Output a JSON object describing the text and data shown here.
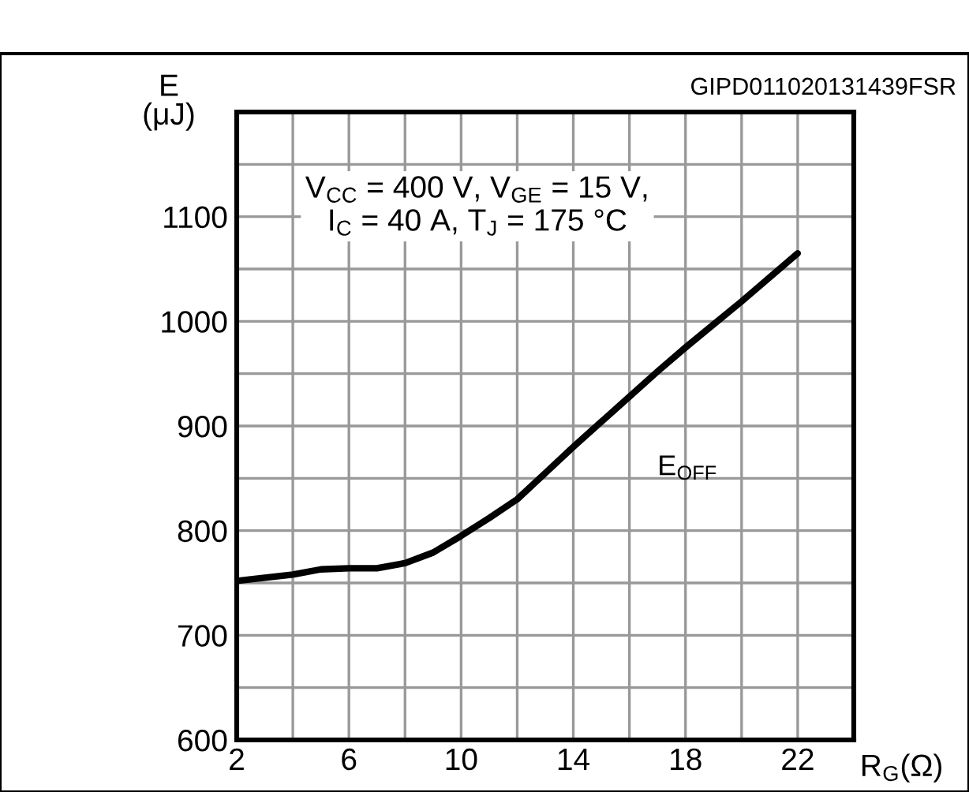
{
  "chart_data": {
    "type": "line",
    "xlabel": "R$_{G}$(Ω)",
    "ylabel": "E\n(μJ)",
    "annotations": [
      "GIPD011020131439FSR",
      "V$_{CC}$ = 400 V, V$_{GE}$ = 15 V,\nI$_{C}$ = 40 A, T$_{J}$ = 175 °C"
    ],
    "series": [
      {
        "name": "E$_{OFF}$",
        "color": "#000000",
        "x": [
          2,
          3,
          4,
          5,
          6,
          7,
          8,
          9,
          10,
          11,
          12,
          13,
          14,
          15,
          16,
          17,
          18,
          19,
          20,
          21,
          22
        ],
        "values": [
          752,
          755,
          758,
          763,
          764,
          764,
          769,
          779,
          795,
          812,
          830,
          855,
          880,
          904,
          928,
          952,
          975,
          997,
          1019,
          1042,
          1065
        ]
      }
    ],
    "xlim": [
      2,
      24
    ],
    "ylim": [
      600,
      1200
    ],
    "xticks": [
      2,
      6,
      10,
      14,
      18,
      22
    ],
    "yticks": [
      600,
      700,
      800,
      900,
      1000,
      1100,
      {
        "value": 1150,
        "label": null
      },
      {
        "value": 1200,
        "label": null
      }
    ],
    "grid": true,
    "legend": false,
    "line_style": "solid",
    "marker": "none"
  }
}
